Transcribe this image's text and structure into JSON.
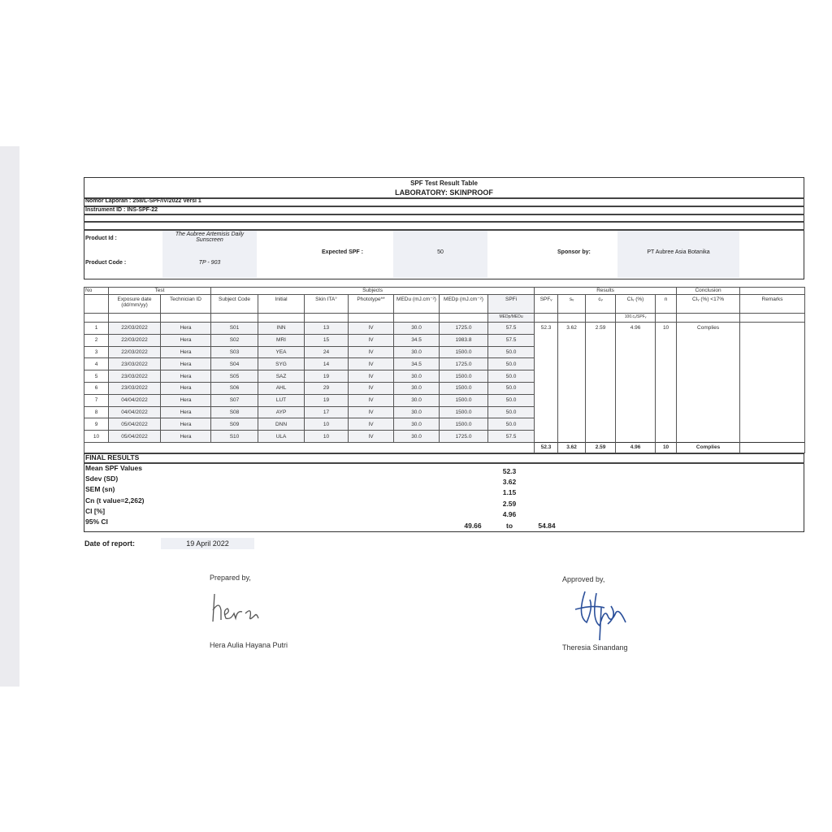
{
  "header": {
    "title": "SPF Test Result Table",
    "laboratory": "LABORATORY: SKINPROOF",
    "report_number": "Nomor Laporan : 258/L-SPF/IV/2022 Versi 1",
    "instrument_id": "Instrument ID : INS-SPF-22"
  },
  "product": {
    "id_label": "Product Id :",
    "id_value": "The Aubree Artemisis Daily Sunscreen",
    "code_label": "Product Code :",
    "code_value": "TP - 903",
    "expected_spf_label": "Expected SPF :",
    "expected_spf_value": "50",
    "sponsor_label": "Sponsor by:",
    "sponsor_value": "PT Aubree Asia Botanika"
  },
  "table": {
    "group_headers": {
      "no": "No",
      "test": "Test",
      "subjects": "Subjects",
      "results": "Results",
      "conclusion": "Conclusion"
    },
    "columns": [
      "Exposure date (dd/mm/yy)",
      "Technician ID",
      "Subject Code",
      "Initial",
      "Skin ITA°",
      "Phototype**",
      "MEDu (mJ.cm⁻²)",
      "MEDp (mJ.cm⁻²)",
      "SPFi",
      "SPFᵥ",
      "sᵥ",
      "cᵥ",
      "CIᵥ (%)",
      "n",
      "CIᵥ (%) <17%",
      "Remarks"
    ],
    "sub_headers": {
      "spfi": "MEDp/MEDu",
      "civ": "100.cᵥ/SPFᵥ"
    },
    "rows": [
      [
        "1",
        "22/03/2022",
        "Hera",
        "S01",
        "INN",
        "13",
        "IV",
        "30.0",
        "1725.0",
        "57.5"
      ],
      [
        "2",
        "22/03/2022",
        "Hera",
        "S02",
        "MRI",
        "15",
        "IV",
        "34.5",
        "1983.8",
        "57.5"
      ],
      [
        "3",
        "22/03/2022",
        "Hera",
        "S03",
        "YEA",
        "24",
        "IV",
        "30.0",
        "1500.0",
        "50.0"
      ],
      [
        "4",
        "23/03/2022",
        "Hera",
        "S04",
        "SYG",
        "14",
        "IV",
        "34.5",
        "1725.0",
        "50.0"
      ],
      [
        "5",
        "23/03/2022",
        "Hera",
        "S05",
        "SAZ",
        "19",
        "IV",
        "30.0",
        "1500.0",
        "50.0"
      ],
      [
        "6",
        "23/03/2022",
        "Hera",
        "S06",
        "AHL",
        "29",
        "IV",
        "30.0",
        "1500.0",
        "50.0"
      ],
      [
        "7",
        "04/04/2022",
        "Hera",
        "S07",
        "LUT",
        "19",
        "IV",
        "30.0",
        "1500.0",
        "50.0"
      ],
      [
        "8",
        "04/04/2022",
        "Hera",
        "S08",
        "AYP",
        "17",
        "IV",
        "30.0",
        "1500.0",
        "50.0"
      ],
      [
        "9",
        "05/04/2022",
        "Hera",
        "S09",
        "DNN",
        "10",
        "IV",
        "30.0",
        "1500.0",
        "50.0"
      ],
      [
        "10",
        "05/04/2022",
        "Hera",
        "S10",
        "ULA",
        "10",
        "IV",
        "30.0",
        "1725.0",
        "57.5"
      ]
    ],
    "results": [
      "52.3",
      "3.62",
      "2.59",
      "4.96",
      "10",
      "Complies",
      ""
    ],
    "totals": [
      "52.3",
      "3.62",
      "2.59",
      "4.96",
      "10",
      "Complies",
      ""
    ]
  },
  "final_results": {
    "title": "FINAL RESULTS",
    "items": [
      {
        "label": "Mean SPF Values",
        "value": "52.3"
      },
      {
        "label": "Sdev (SD)",
        "value": "3.62"
      },
      {
        "label": "SEM (sn)",
        "value": "1.15"
      },
      {
        "label": "Cn (t value=2,262)",
        "value": "2.59"
      },
      {
        "label": "CI [%]",
        "value": "4.96"
      }
    ],
    "ci95": {
      "label": "95% CI",
      "low": "49.66",
      "to": "to",
      "high": "54.84"
    }
  },
  "report_date": {
    "label": "Date of report:",
    "value": "19 April 2022"
  },
  "signatures": {
    "prepared_label": "Prepared by,",
    "prepared_name": "Hera Aulia Hayana Putri",
    "prepared_signature": "hera",
    "approved_label": "Approved by,",
    "approved_name": "Theresia Sinandang"
  },
  "colors": {
    "signature_blue": "#2a4f9a",
    "highlight": "#eef0f5"
  }
}
